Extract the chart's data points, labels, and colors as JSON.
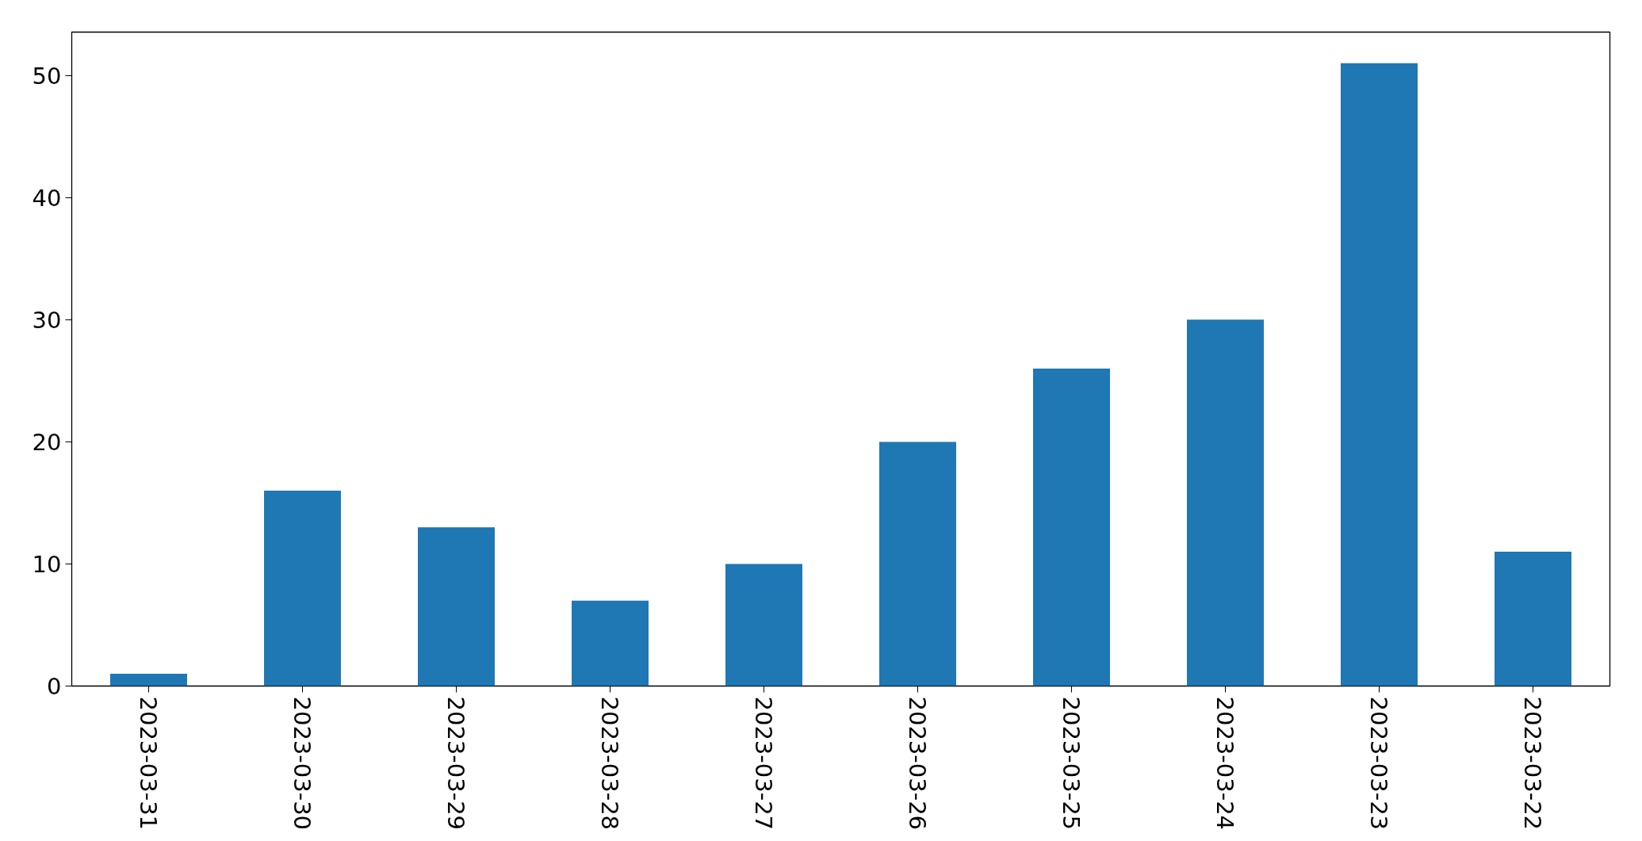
{
  "chart_data": {
    "type": "bar",
    "categories": [
      "2023-03-31",
      "2023-03-30",
      "2023-03-29",
      "2023-03-28",
      "2023-03-27",
      "2023-03-26",
      "2023-03-25",
      "2023-03-24",
      "2023-03-23",
      "2023-03-22"
    ],
    "values": [
      1,
      16,
      13,
      7,
      10,
      20,
      26,
      30,
      51,
      11
    ],
    "color": "#1f77b4",
    "ylim": [
      0,
      53.55
    ],
    "yticks": [
      0,
      10,
      20,
      30,
      40,
      50
    ],
    "grid": false
  }
}
